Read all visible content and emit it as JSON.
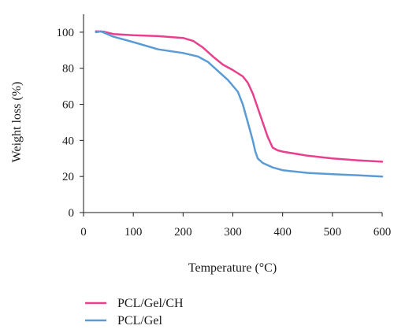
{
  "chart_data": {
    "type": "line",
    "title": "",
    "xlabel": "Temperature (°C)",
    "ylabel": "Weight loss (%)",
    "xlim": [
      0,
      600
    ],
    "ylim": [
      0,
      110
    ],
    "x_ticks": [
      0,
      100,
      200,
      300,
      400,
      500,
      600
    ],
    "y_ticks": [
      0,
      20,
      40,
      60,
      80,
      100
    ],
    "grid": false,
    "legend_position": "bottom-left",
    "series": [
      {
        "name": "PCL/Gel/CH",
        "color": "#e8408c",
        "x": [
          25,
          40,
          60,
          100,
          150,
          200,
          220,
          240,
          260,
          280,
          300,
          320,
          330,
          340,
          350,
          360,
          370,
          380,
          390,
          400,
          450,
          500,
          550,
          600
        ],
        "y": [
          100.5,
          100.3,
          99,
          98.3,
          97.8,
          96.8,
          95.2,
          91.5,
          86.5,
          82,
          79,
          75.5,
          72,
          66,
          58,
          50,
          42,
          36,
          34.5,
          33.8,
          31.5,
          30,
          29,
          28.2
        ]
      },
      {
        "name": "PCL/Gel",
        "color": "#5b9bd5",
        "x": [
          25,
          35,
          60,
          100,
          150,
          200,
          230,
          250,
          270,
          290,
          310,
          320,
          330,
          340,
          345,
          350,
          360,
          380,
          400,
          450,
          500,
          550,
          600
        ],
        "y": [
          100,
          100.5,
          97.5,
          94.5,
          90.5,
          88.5,
          86.5,
          83.5,
          78.5,
          73.5,
          67,
          60,
          50,
          40,
          34,
          30,
          27.5,
          25,
          23.5,
          22,
          21.3,
          20.7,
          20
        ]
      }
    ]
  }
}
